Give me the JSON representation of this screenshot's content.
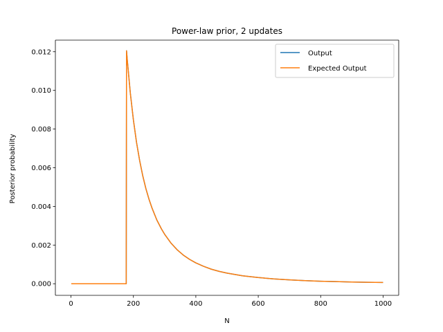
{
  "chart_data": {
    "type": "line",
    "title": "Power-law prior, 2 updates",
    "xlabel": "N",
    "ylabel": "Posterior probability",
    "xlim": [
      -50,
      1050
    ],
    "ylim": [
      -0.0006,
      0.0126
    ],
    "xticks": [
      0,
      200,
      400,
      600,
      800,
      1000
    ],
    "yticks": [
      0.0,
      0.002,
      0.004,
      0.006,
      0.008,
      0.01,
      0.012
    ],
    "xtick_labels": [
      "0",
      "200",
      "400",
      "600",
      "800",
      "1000"
    ],
    "ytick_labels": [
      "0.000",
      "0.002",
      "0.004",
      "0.006",
      "0.008",
      "0.010",
      "0.012"
    ],
    "grid": false,
    "legend_position": "top-right",
    "series": [
      {
        "name": "Output",
        "color": "#1f77b4",
        "x": [
          1,
          60,
          120,
          175,
          177,
          178,
          180,
          190,
          200,
          210,
          220,
          230,
          240,
          250,
          260,
          275,
          290,
          300,
          320,
          340,
          360,
          380,
          400,
          425,
          450,
          475,
          500,
          550,
          600,
          650,
          700,
          750,
          800,
          850,
          900,
          950,
          1000
        ],
        "y": [
          0,
          0,
          0,
          0,
          0,
          0.01205,
          0.01164,
          0.00988,
          0.00847,
          0.00731,
          0.00637,
          0.00558,
          0.00492,
          0.00437,
          0.0039,
          0.0033,
          0.00283,
          0.00256,
          0.00211,
          0.00176,
          0.00148,
          0.00126,
          0.00108,
          0.0009,
          0.00075,
          0.00064,
          0.00055,
          0.00041,
          0.00032,
          0.00025,
          0.0002,
          0.00016,
          0.00013,
          0.00011,
          9e-05,
          7.5e-05,
          6.5e-05
        ]
      },
      {
        "name": "Expected Output",
        "color": "#ff7f0e",
        "x": [
          1,
          60,
          120,
          175,
          177,
          178,
          180,
          190,
          200,
          210,
          220,
          230,
          240,
          250,
          260,
          275,
          290,
          300,
          320,
          340,
          360,
          380,
          400,
          425,
          450,
          475,
          500,
          550,
          600,
          650,
          700,
          750,
          800,
          850,
          900,
          950,
          1000
        ],
        "y": [
          0,
          0,
          0,
          0,
          0,
          0.01205,
          0.01164,
          0.00988,
          0.00847,
          0.00731,
          0.00637,
          0.00558,
          0.00492,
          0.00437,
          0.0039,
          0.0033,
          0.00283,
          0.00256,
          0.00211,
          0.00176,
          0.00148,
          0.00126,
          0.00108,
          0.0009,
          0.00075,
          0.00064,
          0.00055,
          0.00041,
          0.00032,
          0.00025,
          0.0002,
          0.00016,
          0.00013,
          0.00011,
          9e-05,
          7.5e-05,
          6.5e-05
        ]
      }
    ]
  }
}
